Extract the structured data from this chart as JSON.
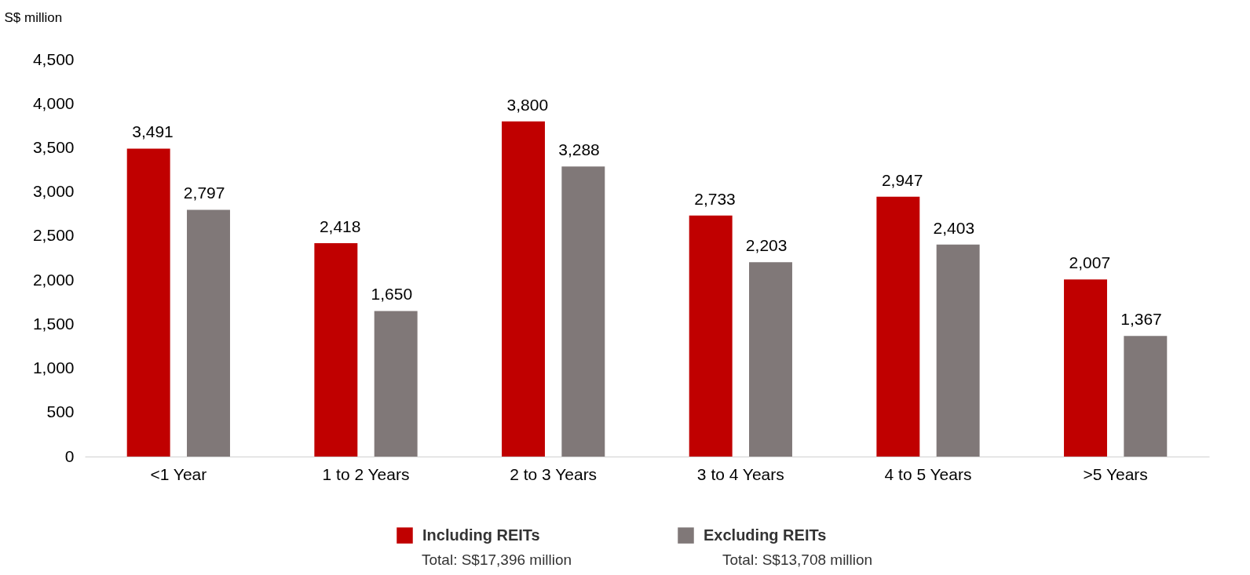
{
  "chart_data": {
    "type": "bar",
    "ylabel": "S$ million",
    "categories": [
      "<1 Year",
      "1 to 2 Years",
      "2 to 3 Years",
      "3 to 4 Years",
      "4 to 5 Years",
      ">5 Years"
    ],
    "series": [
      {
        "name": "Including REITs",
        "color": "#c00000",
        "values": [
          3491,
          2418,
          3800,
          2733,
          2947,
          2007
        ],
        "value_labels": [
          "3,491",
          "2,418",
          "3,800",
          "2,733",
          "2,947",
          "2,007"
        ]
      },
      {
        "name": "Excluding REITs",
        "color": "#807878",
        "values": [
          2797,
          1650,
          3288,
          2203,
          2403,
          1367
        ],
        "value_labels": [
          "2,797",
          "1,650",
          "3,288",
          "2,203",
          "2,403",
          "1,367"
        ]
      }
    ],
    "ylim": [
      0,
      4500
    ],
    "yticks": [
      0,
      500,
      {
        "value": 1000,
        "label": "1,000"
      },
      {
        "value": 1500,
        "label": "1,500"
      },
      {
        "value": 2000,
        "label": "2,000"
      },
      {
        "value": 2500,
        "label": "2,500"
      },
      {
        "value": 3000,
        "label": "3,000"
      },
      {
        "value": 3500,
        "label": "3,500"
      },
      {
        "value": 4000,
        "label": "4,000"
      },
      {
        "value": 4500,
        "label": "4,500"
      }
    ],
    "grid": false,
    "legend": "bottom",
    "annotations": [
      "Total: S$17,396 million",
      "Total: S$13,708 million"
    ]
  }
}
